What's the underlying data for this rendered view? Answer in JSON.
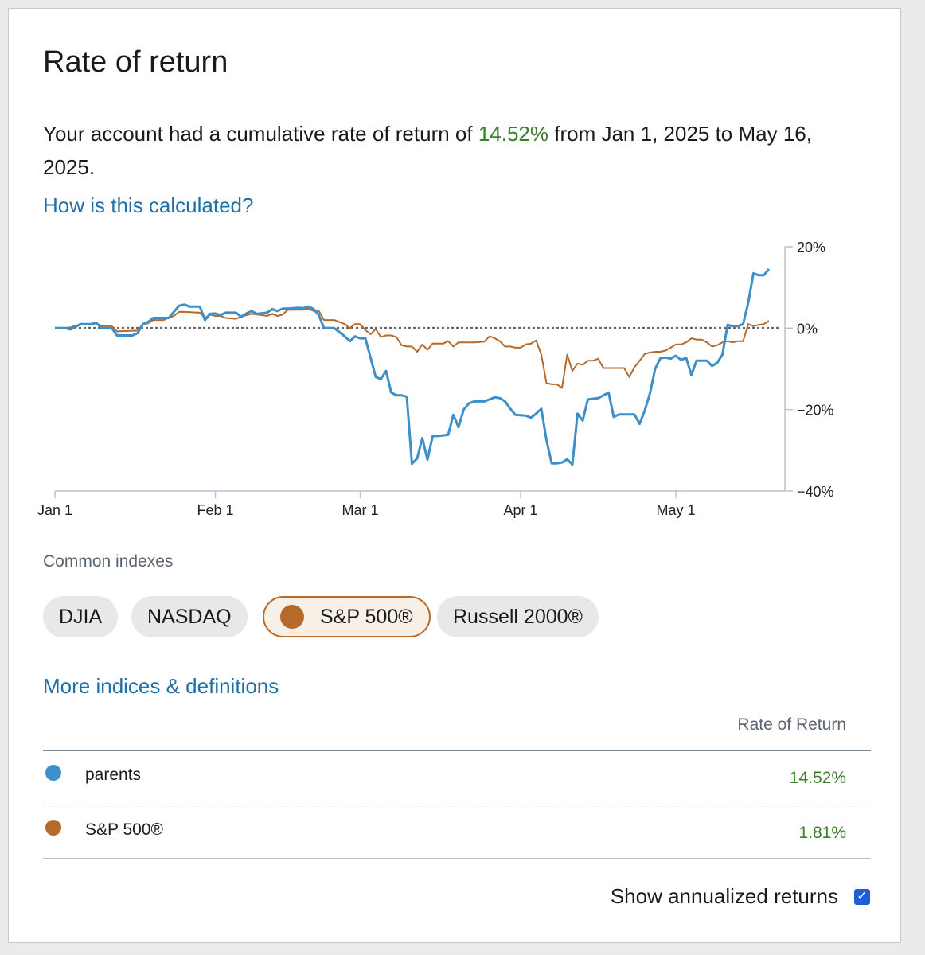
{
  "title": "Rate of return",
  "summary": {
    "prefix": "Your account had a cumulative rate of return of",
    "value": "14.52%",
    "suffix": "from Jan 1, 2025 to May 16, 2025."
  },
  "links": {
    "how_calculated": "How is this calculated?",
    "more_indices": "More indices & definitions"
  },
  "indexes": {
    "label": "Common indexes",
    "items": [
      {
        "label": "DJIA",
        "selected": false
      },
      {
        "label": "NASDAQ",
        "selected": false
      },
      {
        "label": "S&P 500®",
        "selected": true
      },
      {
        "label": "Russell 2000®",
        "selected": false
      }
    ]
  },
  "table": {
    "header": "Rate of Return",
    "rows": [
      {
        "name": "parents",
        "value": "14.52%",
        "color": "#3d8fc9"
      },
      {
        "name": "S&P 500®",
        "value": "1.81%",
        "color": "#b5692a"
      }
    ]
  },
  "annualized": {
    "label": "Show annualized returns",
    "checked": true
  },
  "colors": {
    "positive": "#3a7d2c",
    "link": "#1f6fa8",
    "account": "#3d8fc9",
    "index": "#b5692a"
  },
  "chart_data": {
    "type": "line",
    "x_ticks": [
      {
        "day": 0,
        "label": "Jan 1"
      },
      {
        "day": 31,
        "label": "Feb 1"
      },
      {
        "day": 59,
        "label": "Mar 1"
      },
      {
        "day": 90,
        "label": "Apr 1"
      },
      {
        "day": 120,
        "label": "May 1"
      }
    ],
    "y_ticks": [
      {
        "value": 20,
        "label": "20%"
      },
      {
        "value": 0,
        "label": "0%"
      },
      {
        "value": -20,
        "label": "−20%"
      },
      {
        "value": -40,
        "label": "−40%"
      }
    ],
    "ylim": [
      -40,
      20
    ],
    "xlim": [
      0,
      140
    ],
    "zero_line": true,
    "series": [
      {
        "name": "parents",
        "color": "#3d8fc9",
        "points": [
          [
            0,
            0
          ],
          [
            2,
            0
          ],
          [
            3,
            -0.3
          ],
          [
            5,
            1
          ],
          [
            7,
            1
          ],
          [
            8,
            1.3
          ],
          [
            9,
            0
          ],
          [
            10,
            0
          ],
          [
            11,
            0
          ],
          [
            12,
            -1.8
          ],
          [
            14,
            -1.8
          ],
          [
            15,
            -1.8
          ],
          [
            16,
            -1.2
          ],
          [
            17,
            1
          ],
          [
            18,
            1.5
          ],
          [
            19,
            2.5
          ],
          [
            21,
            2.5
          ],
          [
            22,
            2.5
          ],
          [
            23,
            4
          ],
          [
            24,
            5.5
          ],
          [
            25,
            5.8
          ],
          [
            26,
            5.3
          ],
          [
            28,
            5.3
          ],
          [
            29,
            2
          ],
          [
            30,
            3.5
          ],
          [
            31,
            3.6
          ],
          [
            32,
            3.2
          ],
          [
            33,
            3.8
          ],
          [
            35,
            3.8
          ],
          [
            36,
            2.8
          ],
          [
            37,
            3.6
          ],
          [
            38,
            4.2
          ],
          [
            39,
            3.5
          ],
          [
            41,
            3.8
          ],
          [
            42,
            4.7
          ],
          [
            43,
            4.2
          ],
          [
            44,
            4.8
          ],
          [
            45,
            4.8
          ],
          [
            47,
            5
          ],
          [
            48,
            4.9
          ],
          [
            49,
            5.3
          ],
          [
            50,
            4.7
          ],
          [
            51,
            3.2
          ],
          [
            52,
            0
          ],
          [
            54,
            0
          ],
          [
            55,
            -1
          ],
          [
            56,
            -2
          ],
          [
            57,
            -3.2
          ],
          [
            58,
            -2
          ],
          [
            59,
            -2.5
          ],
          [
            60,
            -2.5
          ],
          [
            62,
            -12
          ],
          [
            63,
            -12.5
          ],
          [
            64,
            -10.5
          ],
          [
            65,
            -15.8
          ],
          [
            66,
            -16.5
          ],
          [
            67,
            -16.5
          ],
          [
            68,
            -16.8
          ],
          [
            69,
            -33.3
          ],
          [
            70,
            -32
          ],
          [
            71,
            -27
          ],
          [
            72,
            -32.3
          ],
          [
            73,
            -26.5
          ],
          [
            74,
            -26.5
          ],
          [
            76,
            -26.2
          ],
          [
            77,
            -21.3
          ],
          [
            78,
            -24.3
          ],
          [
            79,
            -20
          ],
          [
            80,
            -18.5
          ],
          [
            81,
            -18
          ],
          [
            83,
            -18
          ],
          [
            84,
            -17.5
          ],
          [
            85,
            -17
          ],
          [
            86,
            -17.2
          ],
          [
            87,
            -18
          ],
          [
            88,
            -19.8
          ],
          [
            89,
            -21.3
          ],
          [
            91,
            -21.5
          ],
          [
            92,
            -22
          ],
          [
            93,
            -21
          ],
          [
            94,
            -19.8
          ],
          [
            95,
            -27.5
          ],
          [
            96,
            -33.2
          ],
          [
            97,
            -33.2
          ],
          [
            98,
            -33
          ],
          [
            99,
            -32.2
          ],
          [
            100,
            -33.5
          ],
          [
            101,
            -21
          ],
          [
            102,
            -22.7
          ],
          [
            103,
            -17.5
          ],
          [
            105,
            -17.2
          ],
          [
            106,
            -16.5
          ],
          [
            107,
            -15.8
          ],
          [
            108,
            -21.8
          ],
          [
            109,
            -21.2
          ],
          [
            110,
            -21.2
          ],
          [
            112,
            -21.2
          ],
          [
            113,
            -23.5
          ],
          [
            114,
            -20.2
          ],
          [
            115,
            -16
          ],
          [
            116,
            -10
          ],
          [
            117,
            -7.4
          ],
          [
            118,
            -7.2
          ],
          [
            119,
            -7.5
          ],
          [
            120,
            -6.8
          ],
          [
            121,
            -7.8
          ],
          [
            122,
            -7.3
          ],
          [
            123,
            -11.5
          ],
          [
            124,
            -8
          ],
          [
            125,
            -8
          ],
          [
            126,
            -8
          ],
          [
            127,
            -9.3
          ],
          [
            128,
            -8.5
          ],
          [
            129,
            -6.5
          ],
          [
            130,
            0.8
          ],
          [
            131,
            0.5
          ],
          [
            132,
            0.5
          ],
          [
            133,
            1
          ],
          [
            134,
            6.3
          ],
          [
            135,
            13.5
          ],
          [
            136,
            13
          ],
          [
            137,
            13
          ],
          [
            138,
            14.52
          ]
        ]
      },
      {
        "name": "S&P 500®",
        "color": "#b5692a",
        "points": [
          [
            0,
            0
          ],
          [
            2,
            0
          ],
          [
            3,
            0.2
          ],
          [
            5,
            1
          ],
          [
            7,
            1
          ],
          [
            8,
            1.2
          ],
          [
            9,
            0.5
          ],
          [
            11,
            0.5
          ],
          [
            12,
            -0.8
          ],
          [
            16,
            -0.6
          ],
          [
            17,
            1
          ],
          [
            18,
            1.2
          ],
          [
            19,
            2
          ],
          [
            21,
            2
          ],
          [
            22,
            2.5
          ],
          [
            23,
            3
          ],
          [
            24,
            4
          ],
          [
            25,
            4
          ],
          [
            28,
            3.8
          ],
          [
            29,
            2.5
          ],
          [
            30,
            3.3
          ],
          [
            31,
            3
          ],
          [
            32,
            3
          ],
          [
            33,
            2.5
          ],
          [
            35,
            2.3
          ],
          [
            36,
            2.8
          ],
          [
            37,
            3.2
          ],
          [
            38,
            3.5
          ],
          [
            40,
            3.2
          ],
          [
            41,
            3
          ],
          [
            42,
            3.5
          ],
          [
            43,
            3
          ],
          [
            44,
            3.3
          ],
          [
            45,
            4.5
          ],
          [
            47,
            4.5
          ],
          [
            48,
            4.5
          ],
          [
            49,
            4.8
          ],
          [
            50,
            4.2
          ],
          [
            51,
            4.2
          ],
          [
            52,
            2
          ],
          [
            54,
            2
          ],
          [
            55,
            1.5
          ],
          [
            56,
            1
          ],
          [
            57,
            0
          ],
          [
            58,
            1
          ],
          [
            59,
            1
          ],
          [
            60,
            -0.5
          ],
          [
            61,
            -1.5
          ],
          [
            62,
            -0.2
          ],
          [
            63,
            -2.2
          ],
          [
            64,
            -1.8
          ],
          [
            65,
            -1.8
          ],
          [
            66,
            -2.2
          ],
          [
            67,
            -4.2
          ],
          [
            68,
            -4.5
          ],
          [
            69,
            -4.5
          ],
          [
            70,
            -5.8
          ],
          [
            71,
            -4
          ],
          [
            72,
            -5.3
          ],
          [
            73,
            -3.8
          ],
          [
            75,
            -3.8
          ],
          [
            76,
            -3.2
          ],
          [
            77,
            -4.5
          ],
          [
            78,
            -3.5
          ],
          [
            80,
            -3.5
          ],
          [
            81,
            -3.5
          ],
          [
            83,
            -3.3
          ],
          [
            84,
            -2
          ],
          [
            85,
            -2.5
          ],
          [
            86,
            -3.2
          ],
          [
            87,
            -4.5
          ],
          [
            88,
            -4.5
          ],
          [
            89,
            -4.8
          ],
          [
            90,
            -4.8
          ],
          [
            91,
            -4
          ],
          [
            92,
            -3.8
          ],
          [
            93,
            -3
          ],
          [
            94,
            -6.5
          ],
          [
            95,
            -13.5
          ],
          [
            96,
            -13.8
          ],
          [
            97,
            -13.8
          ],
          [
            98,
            -14.7
          ],
          [
            99,
            -6.5
          ],
          [
            100,
            -10.5
          ],
          [
            101,
            -8.7
          ],
          [
            102,
            -9
          ],
          [
            103,
            -8
          ],
          [
            104,
            -8
          ],
          [
            105,
            -7.5
          ],
          [
            106,
            -9.8
          ],
          [
            107,
            -9.8
          ],
          [
            108,
            -9.8
          ],
          [
            109,
            -9.8
          ],
          [
            110,
            -9.8
          ],
          [
            111,
            -12
          ],
          [
            112,
            -9.6
          ],
          [
            113,
            -8
          ],
          [
            114,
            -6.3
          ],
          [
            115,
            -6
          ],
          [
            116,
            -5.8
          ],
          [
            117,
            -5.8
          ],
          [
            118,
            -5.5
          ],
          [
            119,
            -4.8
          ],
          [
            120,
            -4
          ],
          [
            121,
            -4
          ],
          [
            122,
            -3.5
          ],
          [
            123,
            -2.5
          ],
          [
            124,
            -2.8
          ],
          [
            125,
            -2.8
          ],
          [
            126,
            -3.5
          ],
          [
            127,
            -4.5
          ],
          [
            128,
            -4.2
          ],
          [
            129,
            -3.5
          ],
          [
            130,
            -3.2
          ],
          [
            131,
            -3.5
          ],
          [
            132,
            -3.2
          ],
          [
            133,
            -3.2
          ],
          [
            134,
            1
          ],
          [
            135,
            0.5
          ],
          [
            136,
            0.8
          ],
          [
            137,
            1
          ],
          [
            138,
            1.81
          ]
        ]
      }
    ]
  }
}
